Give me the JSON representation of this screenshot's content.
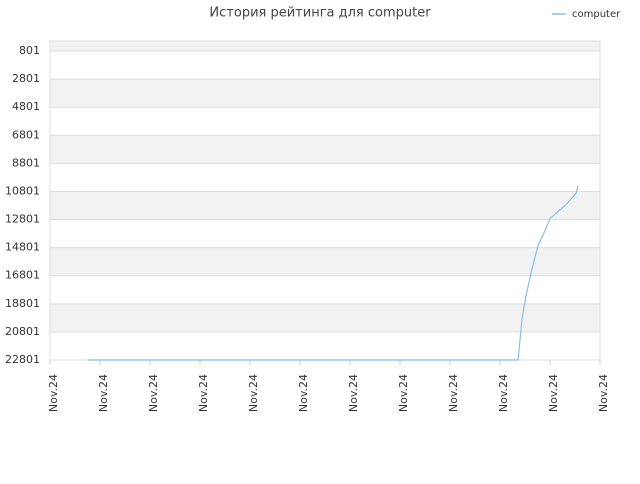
{
  "chart_data": {
    "type": "line",
    "title": "История рейтинга для computer",
    "x": [
      0.76,
      9.36,
      9.38,
      9.44,
      9.52,
      9.64,
      9.76,
      9.9,
      10.0,
      10.3,
      10.52,
      10.56
    ],
    "series": [
      {
        "name": "computer",
        "color": "#88bfe8",
        "values": [
          22801,
          22801,
          22158,
          19872,
          18229,
          16301,
          14658,
          13587,
          12730,
          11801,
          10944,
          10372
        ]
      }
    ],
    "xlim": [
      0,
      11
    ],
    "xticks": [
      {
        "value": 0,
        "label": "Nov.24"
      },
      {
        "value": 1,
        "label": "Nov.24"
      },
      {
        "value": 2,
        "label": "Nov.24"
      },
      {
        "value": 3,
        "label": "Nov.24"
      },
      {
        "value": 4,
        "label": "Nov.24"
      },
      {
        "value": 5,
        "label": "Nov.24"
      },
      {
        "value": 6,
        "label": "Nov.24"
      },
      {
        "value": 7,
        "label": "Nov.24"
      },
      {
        "value": 8,
        "label": "Nov.24"
      },
      {
        "value": 9,
        "label": "Nov.24"
      },
      {
        "value": 10,
        "label": "Nov.24"
      },
      {
        "value": 11,
        "label": "Nov.24"
      }
    ],
    "ylim": [
      22801,
      87
    ],
    "yticks": [
      801,
      2801,
      4801,
      6801,
      8801,
      10801,
      12801,
      14801,
      16801,
      18801,
      20801,
      22801
    ],
    "grid": true,
    "legend": "top-right"
  }
}
